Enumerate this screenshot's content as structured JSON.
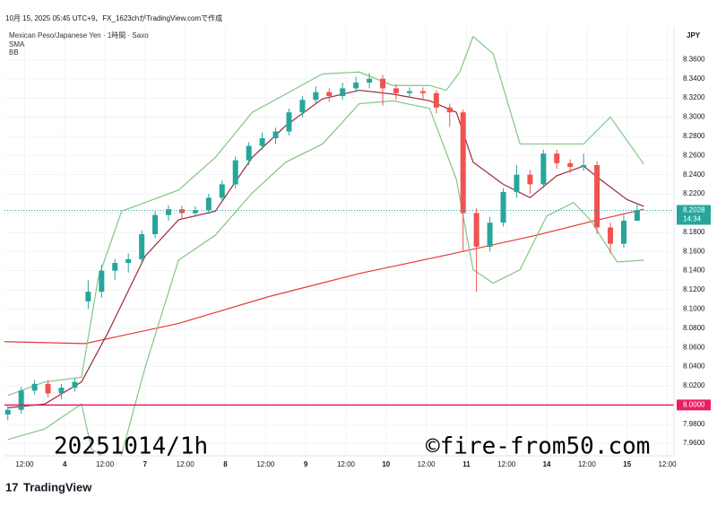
{
  "chart_data": {
    "type": "candlestick",
    "header": "10月 15, 2025 05:45 UTC+9、FX_1623chがTradingView.comで作成",
    "title": "Mexican Peso/Japanese Yen · 1時間 · Saxo",
    "indicators": [
      "SMA",
      "BB"
    ],
    "currency": "JPY",
    "watermark_left": "20251014/1h",
    "watermark_right": "©fire-from50.com",
    "footer": "TradingView",
    "up_color": "#26a69a",
    "down_color": "#ef5350",
    "xlim": [
      -6,
      194
    ],
    "ylim": [
      7.947,
      8.394
    ],
    "grid": true,
    "xticks": [
      {
        "value": 0,
        "label": "12:00"
      },
      {
        "value": 12,
        "label": "4"
      },
      {
        "value": 24,
        "label": "12:00"
      },
      {
        "value": 36,
        "label": "7"
      },
      {
        "value": 48,
        "label": "12:00"
      },
      {
        "value": 60,
        "label": "8"
      },
      {
        "value": 72,
        "label": "12:00"
      },
      {
        "value": 84,
        "label": "9"
      },
      {
        "value": 96,
        "label": "12:00"
      },
      {
        "value": 108,
        "label": "10"
      },
      {
        "value": 120,
        "label": "12:00"
      },
      {
        "value": 132,
        "label": "11"
      },
      {
        "value": 144,
        "label": "12:00"
      },
      {
        "value": 156,
        "label": "14"
      },
      {
        "value": 168,
        "label": "12:00"
      },
      {
        "value": 180,
        "label": "15"
      },
      {
        "value": 192,
        "label": "12:00"
      }
    ],
    "yticks": [
      {
        "value": 7.96,
        "label": "7.9600"
      },
      {
        "value": 7.98,
        "label": "7.9800"
      },
      {
        "value": 8.0,
        "label": "8.0000"
      },
      {
        "value": 8.02,
        "label": "8.0200"
      },
      {
        "value": 8.04,
        "label": "8.0400"
      },
      {
        "value": 8.06,
        "label": "8.0600"
      },
      {
        "value": 8.08,
        "label": "8.0800"
      },
      {
        "value": 8.1,
        "label": "8.1000"
      },
      {
        "value": 8.12,
        "label": "8.1200"
      },
      {
        "value": 8.14,
        "label": "8.1400"
      },
      {
        "value": 8.16,
        "label": "8.1600"
      },
      {
        "value": 8.18,
        "label": "8.1800"
      },
      {
        "value": 8.2,
        "label": "8.2000"
      },
      {
        "value": 8.22,
        "label": "8.2200"
      },
      {
        "value": 8.24,
        "label": "8.2400"
      },
      {
        "value": 8.26,
        "label": "8.2600"
      },
      {
        "value": 8.28,
        "label": "8.2800"
      },
      {
        "value": 8.3,
        "label": "8.3000"
      },
      {
        "value": 8.32,
        "label": "8.3200"
      },
      {
        "value": 8.34,
        "label": "8.3400"
      },
      {
        "value": 8.36,
        "label": "8.3600"
      }
    ],
    "x": [
      -5,
      -1,
      3,
      7,
      11,
      15,
      19,
      23,
      27,
      31,
      35,
      39,
      43,
      47,
      51,
      55,
      59,
      63,
      67,
      71,
      75,
      79,
      83,
      87,
      91,
      95,
      99,
      103,
      107,
      111,
      115,
      119,
      123,
      127,
      131,
      135,
      139,
      143,
      147,
      151,
      155,
      159,
      163,
      167,
      171,
      175,
      179,
      183
    ],
    "open": [
      7.99,
      7.995,
      8.015,
      8.022,
      8.012,
      8.018,
      8.108,
      8.118,
      8.14,
      8.148,
      8.152,
      8.178,
      8.198,
      8.204,
      8.2,
      8.203,
      8.216,
      8.23,
      8.255,
      8.27,
      8.278,
      8.285,
      8.305,
      8.318,
      8.326,
      8.322,
      8.33,
      8.336,
      8.34,
      8.33,
      8.325,
      8.327,
      8.325,
      8.31,
      8.305,
      8.2,
      8.165,
      8.19,
      8.222,
      8.24,
      8.23,
      8.262,
      8.252,
      8.248,
      8.25,
      8.185,
      8.168,
      8.192
    ],
    "high": [
      7.999,
      8.019,
      8.026,
      8.026,
      8.022,
      8.028,
      8.13,
      8.146,
      8.152,
      8.158,
      8.182,
      8.202,
      8.208,
      8.208,
      8.207,
      8.22,
      8.234,
      8.259,
      8.274,
      8.284,
      8.289,
      8.309,
      8.322,
      8.332,
      8.33,
      8.336,
      8.342,
      8.346,
      8.344,
      8.334,
      8.331,
      8.331,
      8.328,
      8.314,
      8.308,
      8.205,
      8.196,
      8.226,
      8.25,
      8.245,
      8.266,
      8.266,
      8.256,
      8.262,
      8.254,
      8.19,
      8.198,
      8.209
    ],
    "low": [
      7.984,
      7.991,
      8.011,
      8.008,
      8.006,
      8.014,
      8.1,
      8.112,
      8.13,
      8.138,
      8.148,
      8.174,
      8.192,
      8.194,
      8.196,
      8.199,
      8.212,
      8.226,
      8.25,
      8.266,
      8.272,
      8.281,
      8.3,
      8.314,
      8.316,
      8.318,
      8.326,
      8.33,
      8.312,
      8.318,
      8.32,
      8.318,
      8.304,
      8.29,
      8.16,
      8.118,
      8.16,
      8.186,
      8.216,
      8.22,
      8.226,
      8.246,
      8.242,
      8.244,
      8.178,
      8.158,
      8.164,
      8.195
    ],
    "close": [
      7.995,
      8.015,
      8.022,
      8.012,
      8.018,
      8.024,
      8.118,
      8.14,
      8.148,
      8.152,
      8.178,
      8.198,
      8.204,
      8.2,
      8.203,
      8.216,
      8.23,
      8.255,
      8.27,
      8.278,
      8.285,
      8.305,
      8.318,
      8.326,
      8.322,
      8.33,
      8.336,
      8.34,
      8.33,
      8.325,
      8.327,
      8.325,
      8.31,
      8.305,
      8.2,
      8.165,
      8.19,
      8.222,
      8.24,
      8.23,
      8.262,
      8.252,
      8.248,
      8.25,
      8.185,
      8.168,
      8.192,
      8.203
    ],
    "series": [
      {
        "name": "SMA",
        "color": "#e53935",
        "x": [
          -6,
          18,
          46,
          73,
          100,
          127,
          153,
          169,
          185
        ],
        "values": [
          8.066,
          8.064,
          8.085,
          8.113,
          8.137,
          8.157,
          8.177,
          8.191,
          8.204
        ]
      },
      {
        "name": "BB",
        "color": "#9c2a3a",
        "x": [
          -5,
          6,
          17,
          25,
          36,
          46,
          57,
          68,
          78,
          89,
          100,
          110,
          121,
          129,
          134,
          143,
          151,
          159,
          167,
          172,
          180,
          185
        ],
        "values": [
          7.997,
          8.001,
          8.024,
          8.076,
          8.155,
          8.193,
          8.202,
          8.258,
          8.291,
          8.319,
          8.328,
          8.324,
          8.317,
          8.305,
          8.253,
          8.23,
          8.216,
          8.239,
          8.249,
          8.235,
          8.214,
          8.207
        ]
      },
      {
        "color": "#81c784",
        "x": [
          -5,
          6,
          17,
          22,
          29,
          36,
          46,
          57,
          68,
          78,
          89,
          100,
          110,
          121,
          126,
          130,
          134,
          140,
          148,
          156,
          167,
          175,
          185
        ],
        "values": [
          8.01,
          8.024,
          8.029,
          8.132,
          8.202,
          8.211,
          8.224,
          8.258,
          8.305,
          8.324,
          8.345,
          8.347,
          8.333,
          8.333,
          8.328,
          8.347,
          8.384,
          8.366,
          8.272,
          8.272,
          8.272,
          8.3,
          8.251
        ]
      },
      {
        "color": "#81c784",
        "x": [
          -5,
          6,
          17,
          20,
          28,
          36,
          46,
          57,
          68,
          78,
          89,
          100,
          110,
          121,
          129,
          134,
          140,
          148,
          156,
          164,
          169,
          177,
          185
        ],
        "values": [
          7.964,
          7.975,
          8.001,
          7.954,
          7.936,
          8.039,
          8.151,
          8.177,
          8.221,
          8.253,
          8.272,
          8.314,
          8.317,
          8.309,
          8.235,
          8.141,
          8.127,
          8.141,
          8.197,
          8.211,
          8.193,
          8.149,
          8.151
        ]
      }
    ],
    "level": {
      "value": 8.0,
      "label": "8.0000",
      "color": "#e91e63"
    },
    "last_price": {
      "value": 8.2028,
      "label": "8.2028",
      "time": "14:34",
      "color": "#26a69a"
    }
  }
}
